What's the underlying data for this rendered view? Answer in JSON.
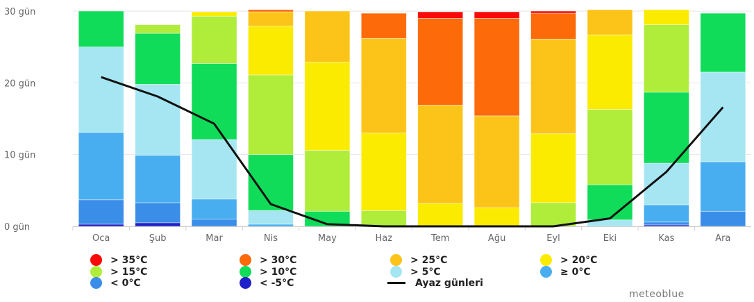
{
  "chart_data": {
    "type": "bar",
    "stacked": true,
    "categories": [
      "Oca",
      "Şub",
      "Mar",
      "Nis",
      "May",
      "Haz",
      "Tem",
      "Ağu",
      "Eyl",
      "Eki",
      "Kas",
      "Ara"
    ],
    "ylim": [
      0,
      30
    ],
    "yticks": [
      {
        "value": 0,
        "label": "0 gün"
      },
      {
        "value": 10,
        "label": "10 gün"
      },
      {
        "value": 20,
        "label": "20 gün"
      },
      {
        "value": 30,
        "label": "30 gün"
      }
    ],
    "grid": true,
    "legend_position": "bottom",
    "series": [
      {
        "name": "< -5°C",
        "color": "#2020c8",
        "values": [
          0.3,
          0.5,
          0,
          0,
          0,
          0,
          0,
          0,
          0,
          0,
          0.2,
          0
        ]
      },
      {
        "name": "< 0°C",
        "color": "#3a8ee8",
        "values": [
          3.4,
          2.8,
          1.0,
          0,
          0,
          0,
          0,
          0,
          0,
          0,
          0.4,
          2.1
        ]
      },
      {
        "name": "≥ 0°C",
        "color": "#48aef0",
        "values": [
          9.4,
          6.6,
          2.8,
          0.3,
          0,
          0,
          0,
          0,
          0,
          0,
          2.4,
          6.9
        ]
      },
      {
        "name": "> 5°C",
        "color": "#a6e6f2",
        "values": [
          11.9,
          9.9,
          8.3,
          1.9,
          0,
          0,
          0,
          0,
          0,
          0.9,
          5.8,
          12.5
        ]
      },
      {
        "name": "> 10°C",
        "color": "#10dc5a",
        "values": [
          5.0,
          7.1,
          10.6,
          7.8,
          2.1,
          0,
          0,
          0,
          0,
          4.9,
          9.9,
          8.2
        ]
      },
      {
        "name": "> 15°C",
        "color": "#b0ec3a",
        "values": [
          0,
          1.2,
          6.6,
          11.1,
          8.5,
          2.2,
          0,
          0,
          3.3,
          10.5,
          9.4,
          0
        ]
      },
      {
        "name": "> 20°C",
        "color": "#fbeb00",
        "values": [
          0,
          0,
          0.6,
          6.8,
          12.3,
          10.8,
          3.2,
          2.6,
          9.6,
          10.4,
          2.1,
          0
        ]
      },
      {
        "name": "> 25°C",
        "color": "#fcc419",
        "values": [
          0,
          0,
          0,
          2.0,
          7.1,
          13.2,
          13.7,
          12.8,
          13.2,
          3.5,
          0,
          0
        ]
      },
      {
        "name": "> 30°C",
        "color": "#fc6a0a",
        "values": [
          0,
          0,
          0,
          0.3,
          0,
          3.5,
          12.1,
          13.6,
          3.6,
          0,
          0,
          0
        ]
      },
      {
        "name": "> 35°C",
        "color": "#f80a0a",
        "values": [
          0,
          0,
          0,
          0,
          0,
          0,
          0.9,
          0.9,
          0.3,
          0,
          0,
          0
        ]
      }
    ],
    "line": {
      "name": "Ayaz günleri",
      "color": "#111111",
      "values": [
        20.8,
        18.1,
        14.3,
        3.1,
        0.3,
        0,
        0,
        0,
        0,
        1.1,
        7.6,
        16.6
      ]
    }
  },
  "legend": {
    "items": [
      {
        "label": "> 35°C",
        "color": "#f80a0a",
        "kind": "dot"
      },
      {
        "label": "> 30°C",
        "color": "#fc6a0a",
        "kind": "dot"
      },
      {
        "label": "> 25°C",
        "color": "#fcc419",
        "kind": "dot"
      },
      {
        "label": "> 20°C",
        "color": "#fbeb00",
        "kind": "dot"
      },
      {
        "label": "> 15°C",
        "color": "#b0ec3a",
        "kind": "dot"
      },
      {
        "label": "> 10°C",
        "color": "#10dc5a",
        "kind": "dot"
      },
      {
        "label": "> 5°C",
        "color": "#a6e6f2",
        "kind": "dot"
      },
      {
        "label": "≥ 0°C",
        "color": "#48aef0",
        "kind": "dot"
      },
      {
        "label": "< 0°C",
        "color": "#3a8ee8",
        "kind": "dot"
      },
      {
        "label": "< -5°C",
        "color": "#2020c8",
        "kind": "dot"
      },
      {
        "label": "Ayaz günleri",
        "color": "#111111",
        "kind": "line"
      }
    ]
  },
  "brand": {
    "text": "meteoblue"
  }
}
